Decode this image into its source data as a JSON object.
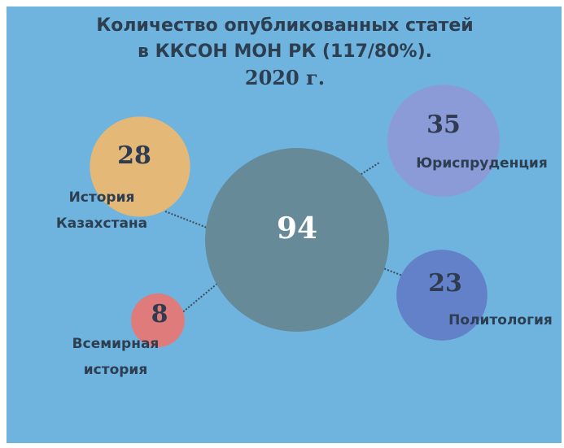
{
  "chart_data": {
    "type": "bubble",
    "title": [
      "Количество опубликованных  статей",
      "в ККСОН МОН РК (117/80%).",
      "2020 г."
    ],
    "categories": [
      null,
      [
        "История",
        "Казахстана"
      ],
      [
        "Юриспруденция"
      ],
      [
        "Политология"
      ],
      [
        "Всемирная",
        "история"
      ]
    ],
    "values": [
      94,
      28,
      35,
      23,
      8
    ],
    "colors": [
      "#668a98",
      "#e4b977",
      "#8b9bd8",
      "#6381c8",
      "#e07b7b"
    ]
  }
}
